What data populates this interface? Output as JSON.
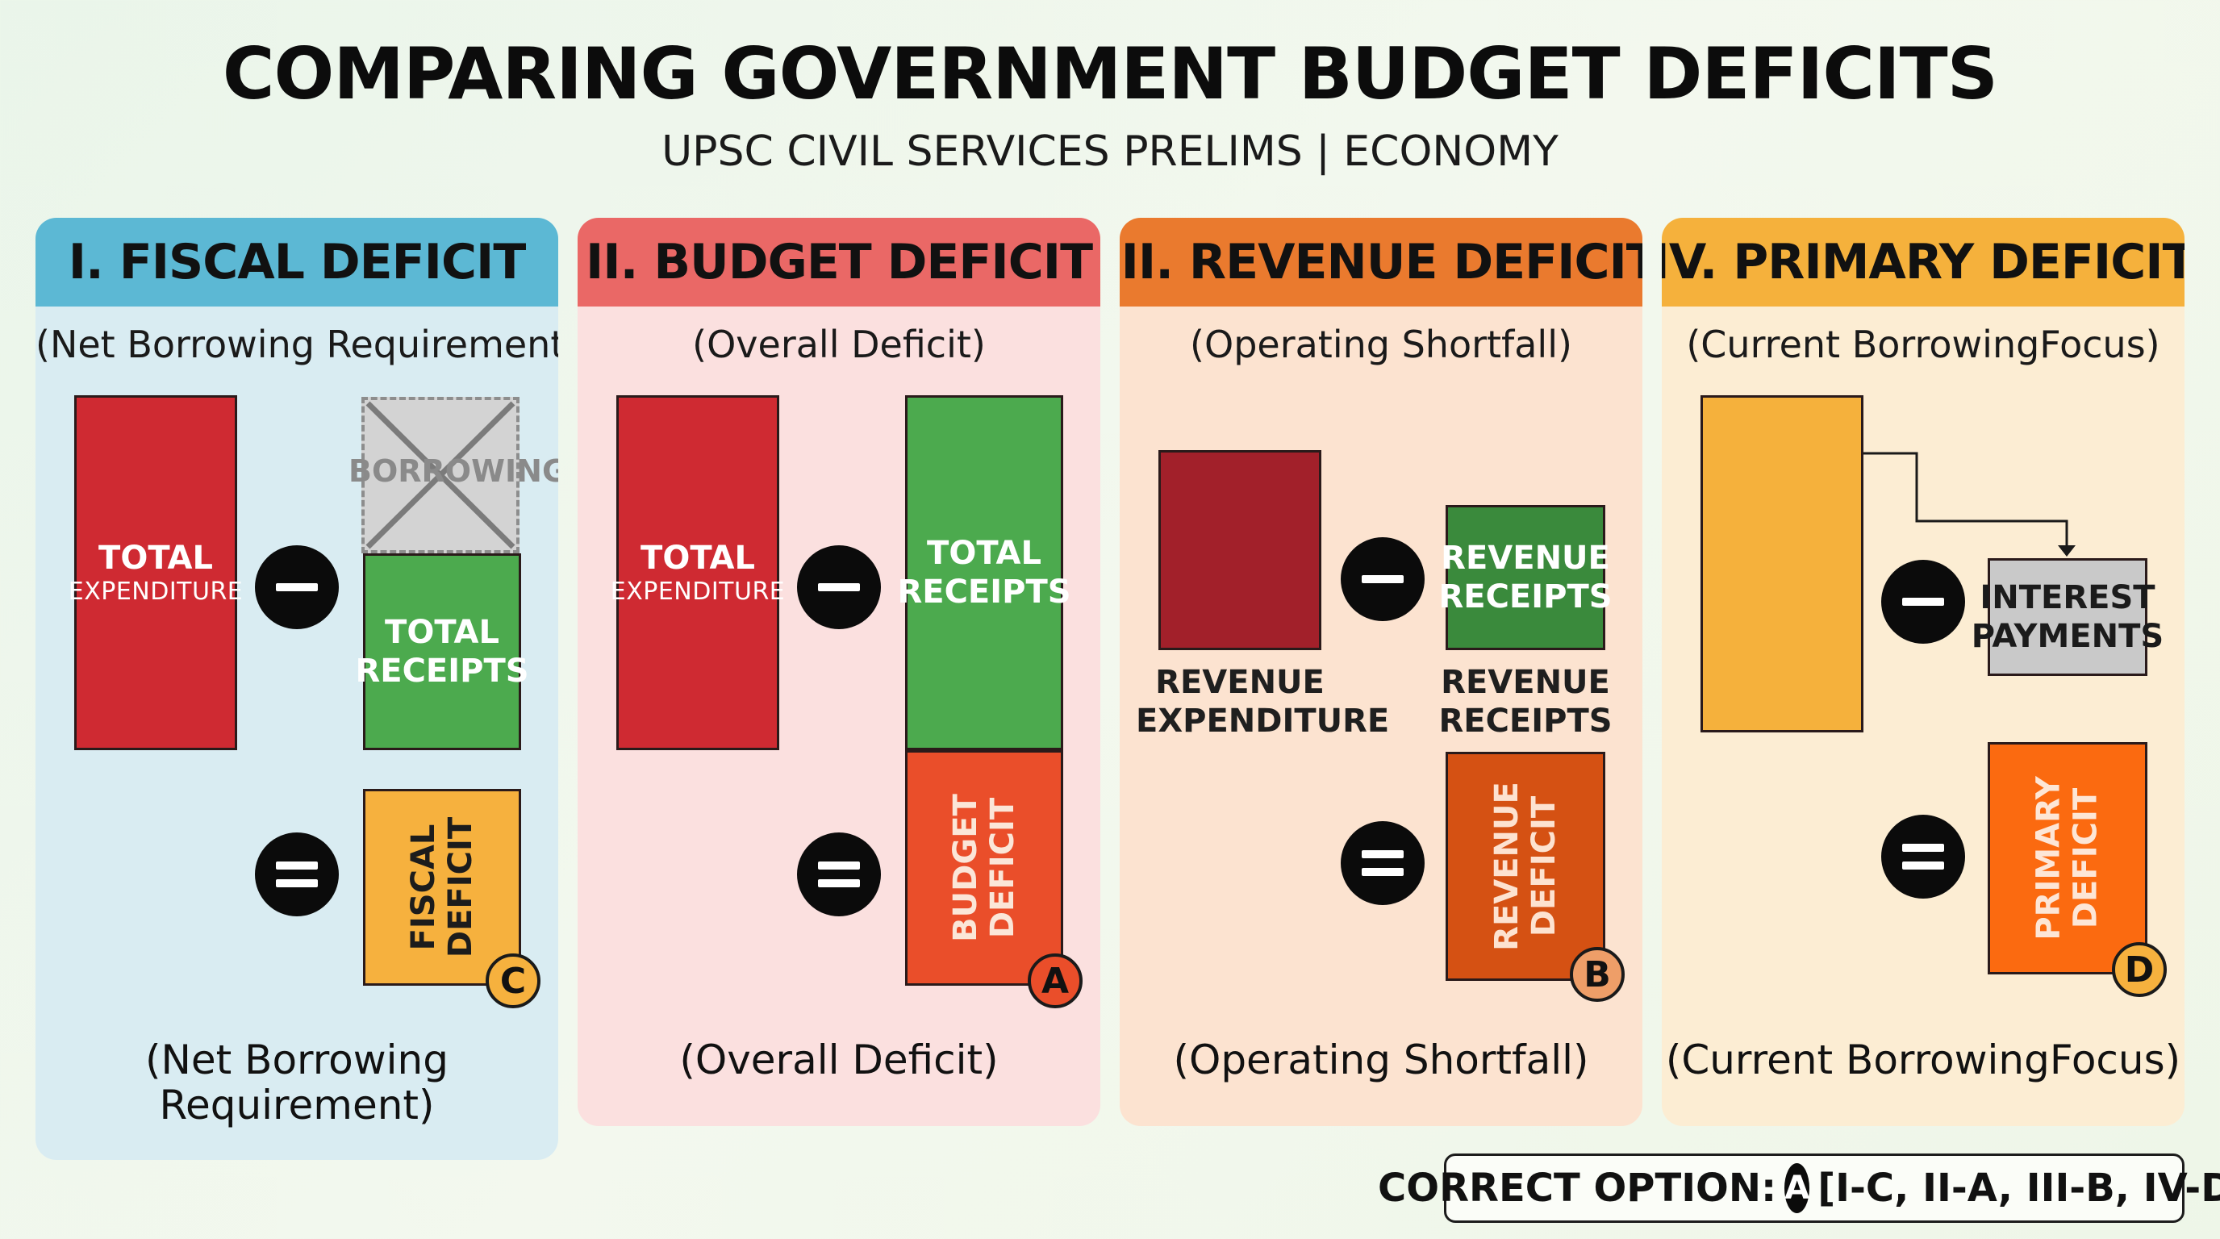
{
  "header": {
    "title": "COMPARING GOVERNMENT BUDGET DEFICITS",
    "subtitle": "UPSC CIVIL SERVICES PRELIMS | ECONOMY"
  },
  "colors": {
    "panel1_header": "#5cb8d4",
    "panel1_bg": "#d9ecf2",
    "panel2_header": "#ea6866",
    "panel2_bg": "#fbe0df",
    "panel3_header": "#ea7a2e",
    "panel3_bg": "#fce3d0",
    "panel4_header": "#f5b13c",
    "panel4_bg": "#fcedd3"
  },
  "panels": [
    {
      "heading": "I. FISCAL DEFICIT",
      "subheading": "(Net Borrowing Requirement)",
      "footer_line1": "(Net Borrowing",
      "footer_line2": "Requirement)",
      "left_box": {
        "line1": "TOTAL",
        "line2": "EXPENDITURE"
      },
      "crossed_box": "BORROWINGS",
      "right_box": {
        "line1": "TOTAL",
        "line2": "RECEIPTS"
      },
      "result_box": {
        "line1": "FISCAL",
        "line2": "DEFICIT"
      },
      "badge": "C"
    },
    {
      "heading": "II. BUDGET DEFICIT",
      "subheading": "(Overall Deficit)",
      "footer_line1": "(Overall Deficit)",
      "left_box": {
        "line1": "TOTAL",
        "line2": "EXPENDITURE"
      },
      "right_box": {
        "line1": "TOTAL",
        "line2": "RECEIPTS"
      },
      "result_box": {
        "line1": "BUDGET",
        "line2": "DEFICIT"
      },
      "badge": "A"
    },
    {
      "heading": "III. REVENUE DEFICIT",
      "subheading": "(Operating Shortfall)",
      "footer_line1": "(Operating Shortfall)",
      "left_caption": {
        "line1": "REVENUE",
        "line2": "EXPENDITURE"
      },
      "right_box": {
        "line1": "REVENUE",
        "line2": "RECEIPTS"
      },
      "right_caption": {
        "line1": "REVENUE",
        "line2": "RECEIPTS"
      },
      "result_box": {
        "line1": "REVENUE",
        "line2": "DEFICIT"
      },
      "badge": "B"
    },
    {
      "heading": "IV. PRIMARY DEFICIT",
      "subheading": "(Current BorrowingFocus)",
      "footer_line1": "(Current BorrowingFocus)",
      "right_box": {
        "line1": "INTEREST",
        "line2": "PAYMENTS"
      },
      "result_box": {
        "line1": "PRIMARY",
        "line2": "DEFICIT"
      },
      "badge": "D"
    }
  ],
  "answer": {
    "label": "CORRECT OPTION:",
    "option": "A",
    "mapping": "[I-C, II-A, III-B, IV-D]"
  }
}
